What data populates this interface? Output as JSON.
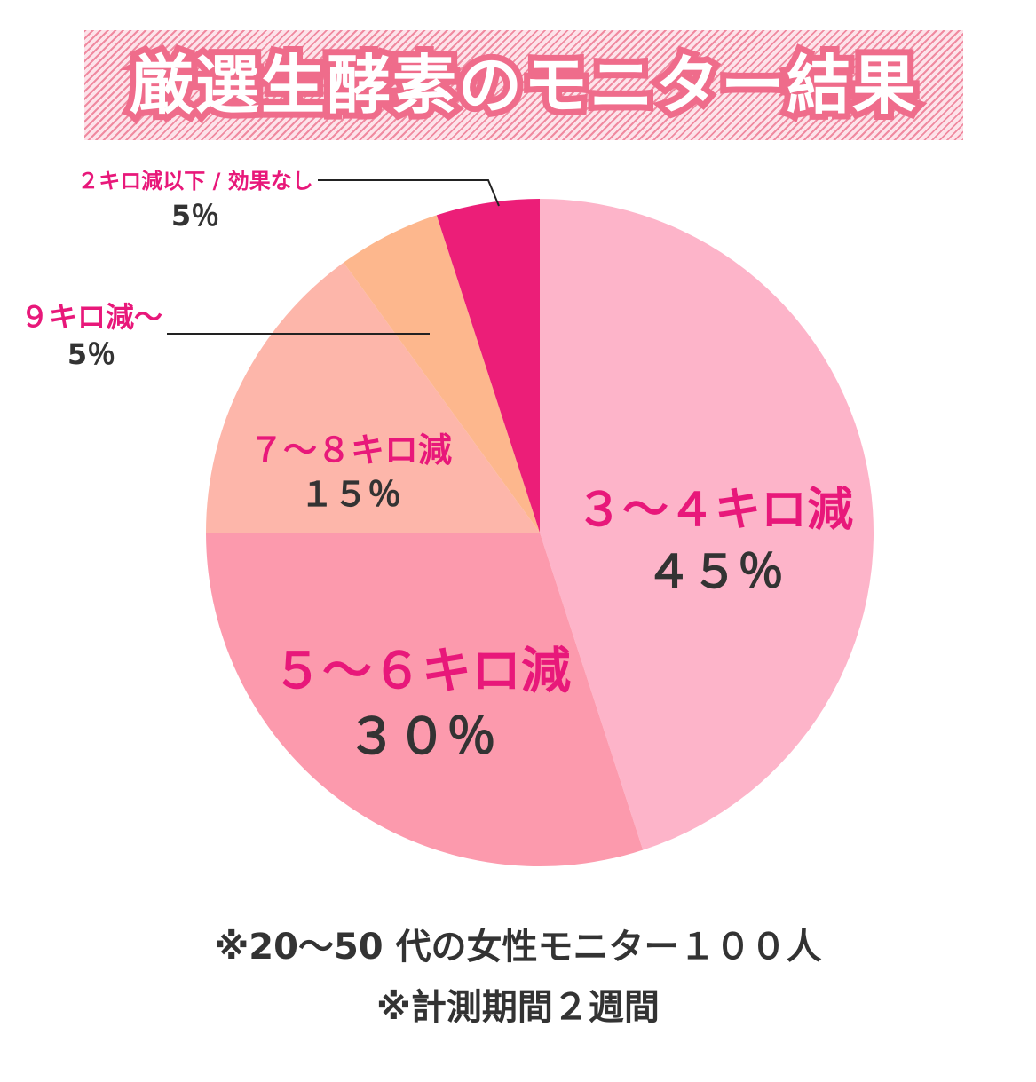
{
  "title": "厳選生酵素のモニター結果",
  "chart_data": {
    "type": "pie",
    "start": "top",
    "direction": "clockwise",
    "slices": [
      {
        "label": "3～4キロ減",
        "value": 45,
        "value_label": "４５％",
        "color": "#fdb4c9"
      },
      {
        "label": "5～6キロ減",
        "value": 30,
        "value_label": "３０％",
        "color": "#fc9aad"
      },
      {
        "label": "7～8キロ減",
        "value": 15,
        "value_label": "１５％",
        "color": "#fdb6aa"
      },
      {
        "label": "9キロ減～",
        "value": 5,
        "value_label": "5％",
        "color": "#fdb78d"
      },
      {
        "label": "2キロ減以下 / 効果なし",
        "value": 5,
        "value_label": "5％",
        "color": "#ec1e78"
      }
    ]
  },
  "labels": {
    "slice1_cat": "３～４キロ減",
    "slice1_pct": "４５％",
    "slice2_cat": "５～６キロ減",
    "slice2_pct": "３０％",
    "slice3_cat": "７～８キロ減",
    "slice3_pct": "１５％",
    "slice4_cat": "９キロ減～",
    "slice4_pct": "5％",
    "slice5_cat": "２キロ減以下 / 効果なし",
    "slice5_pct": "5％"
  },
  "footnotes": {
    "line1": "※20～50 代の女性モニター１００人",
    "line2": "※計測期間２週間"
  },
  "colors": {
    "accent": "#e8187a",
    "banner_stroke": "#ef6c8b",
    "text_dark": "#333333",
    "leader_line": "#222222"
  }
}
